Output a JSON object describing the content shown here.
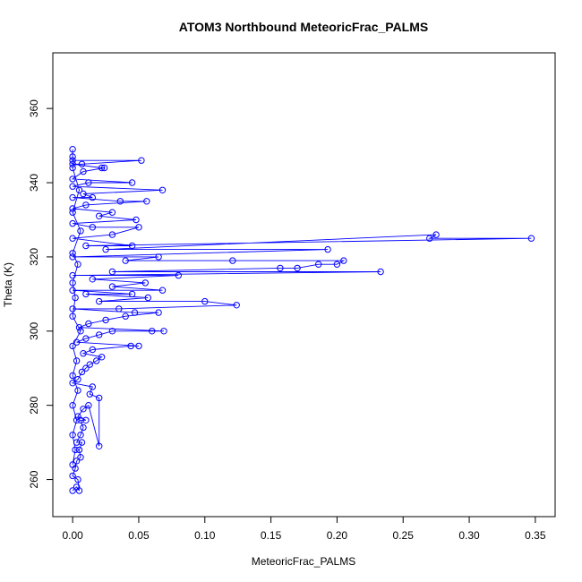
{
  "chart_data": {
    "type": "scatter",
    "title": "ATOM3 Northbound MeteoricFrac_PALMS",
    "xlabel": "MeteoricFrac_PALMS",
    "ylabel": "Theta (K)",
    "xlim": [
      -0.015,
      0.365
    ],
    "ylim": [
      250,
      375
    ],
    "x_ticks": [
      0.0,
      0.05,
      0.1,
      0.15,
      0.2,
      0.25,
      0.3,
      0.35
    ],
    "x_tick_labels": [
      "0.00",
      "0.05",
      "0.10",
      "0.15",
      "0.20",
      "0.25",
      "0.30",
      "0.35"
    ],
    "y_ticks": [
      260,
      280,
      300,
      320,
      340,
      360
    ],
    "y_tick_labels": [
      "260",
      "280",
      "300",
      "320",
      "340",
      "360"
    ],
    "grid": false,
    "legend": "none",
    "color": "#0000FF",
    "marker": "open-circle",
    "connected": true,
    "points": [
      [
        0.0,
        257
      ],
      [
        0.003,
        258
      ],
      [
        0.005,
        257
      ],
      [
        0.004,
        260
      ],
      [
        0.0,
        261
      ],
      [
        0.002,
        263
      ],
      [
        0.003,
        265
      ],
      [
        0.006,
        266
      ],
      [
        0.005,
        268
      ],
      [
        0.007,
        270
      ],
      [
        0.003,
        270
      ],
      [
        0.006,
        272
      ],
      [
        0.008,
        274
      ],
      [
        0.006,
        276
      ],
      [
        0.01,
        276
      ],
      [
        0.004,
        277
      ],
      [
        0.008,
        279
      ],
      [
        0.012,
        280
      ],
      [
        0.02,
        269
      ],
      [
        0.02,
        282
      ],
      [
        0.013,
        283
      ],
      [
        0.015,
        285
      ],
      [
        0.0,
        286
      ],
      [
        0.004,
        287
      ],
      [
        0.007,
        289
      ],
      [
        0.01,
        290
      ],
      [
        0.013,
        291
      ],
      [
        0.018,
        292
      ],
      [
        0.022,
        293
      ],
      [
        0.008,
        294
      ],
      [
        0.015,
        295
      ],
      [
        0.044,
        296
      ],
      [
        0.05,
        296
      ],
      [
        0.003,
        297
      ],
      [
        0.01,
        298
      ],
      [
        0.02,
        299
      ],
      [
        0.03,
        300
      ],
      [
        0.06,
        300
      ],
      [
        0.069,
        300
      ],
      [
        0.005,
        301
      ],
      [
        0.012,
        302
      ],
      [
        0.025,
        303
      ],
      [
        0.04,
        304
      ],
      [
        0.065,
        305
      ],
      [
        0.047,
        305
      ],
      [
        0.0,
        306
      ],
      [
        0.035,
        306
      ],
      [
        0.124,
        307
      ],
      [
        0.1,
        308
      ],
      [
        0.02,
        308
      ],
      [
        0.057,
        309
      ],
      [
        0.01,
        310
      ],
      [
        0.045,
        310
      ],
      [
        0.0,
        311
      ],
      [
        0.068,
        311
      ],
      [
        0.03,
        312
      ],
      [
        0.055,
        313
      ],
      [
        0.015,
        314
      ],
      [
        0.08,
        315
      ],
      [
        0.0,
        315
      ],
      [
        0.233,
        316
      ],
      [
        0.03,
        316
      ],
      [
        0.157,
        317
      ],
      [
        0.17,
        317
      ],
      [
        0.186,
        318
      ],
      [
        0.2,
        318
      ],
      [
        0.205,
        319
      ],
      [
        0.121,
        319
      ],
      [
        0.04,
        319
      ],
      [
        0.065,
        320
      ],
      [
        0.0,
        320
      ],
      [
        0.193,
        322
      ],
      [
        0.025,
        322
      ],
      [
        0.275,
        326
      ],
      [
        0.27,
        325
      ],
      [
        0.347,
        325
      ],
      [
        0.01,
        323
      ],
      [
        0.045,
        323
      ],
      [
        0.0,
        325
      ],
      [
        0.03,
        326
      ],
      [
        0.05,
        328
      ],
      [
        0.015,
        328
      ],
      [
        0.0,
        329
      ],
      [
        0.048,
        330
      ],
      [
        0.02,
        331
      ],
      [
        0.03,
        332
      ],
      [
        0.0,
        333
      ],
      [
        0.01,
        334
      ],
      [
        0.056,
        335
      ],
      [
        0.036,
        335
      ],
      [
        0.0,
        336
      ],
      [
        0.015,
        336
      ],
      [
        0.008,
        337
      ],
      [
        0.068,
        338
      ],
      [
        0.0,
        339
      ],
      [
        0.012,
        340
      ],
      [
        0.045,
        340
      ],
      [
        0.0,
        341
      ],
      [
        0.008,
        343
      ],
      [
        0.024,
        344
      ],
      [
        0.022,
        344
      ],
      [
        0.0,
        345
      ],
      [
        0.007,
        345
      ],
      [
        0.052,
        346
      ],
      [
        0.0,
        346
      ],
      [
        0.0,
        347
      ],
      [
        0.0,
        349
      ],
      [
        0.0,
        344
      ],
      [
        0.005,
        338
      ],
      [
        0.0,
        332
      ],
      [
        0.006,
        327
      ],
      [
        0.0,
        321
      ],
      [
        0.004,
        318
      ],
      [
        0.0,
        313
      ],
      [
        0.002,
        309
      ],
      [
        0.0,
        304
      ],
      [
        0.006,
        300
      ],
      [
        0.0,
        296
      ],
      [
        0.003,
        292
      ],
      [
        0.0,
        288
      ],
      [
        0.004,
        284
      ],
      [
        0.0,
        280
      ],
      [
        0.003,
        276
      ],
      [
        0.0,
        272
      ],
      [
        0.002,
        268
      ],
      [
        0.0,
        264
      ]
    ]
  }
}
